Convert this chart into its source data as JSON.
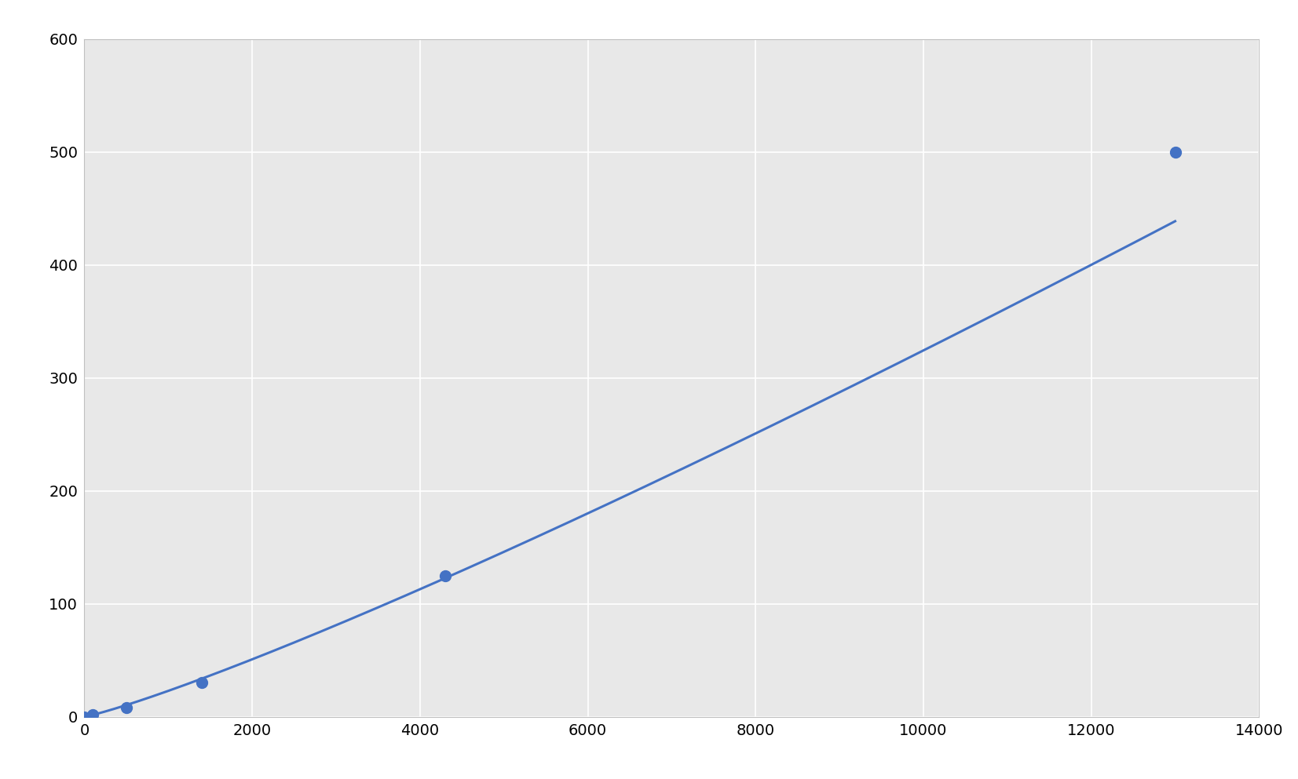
{
  "x_points": [
    0,
    100,
    500,
    1400,
    4300,
    13000
  ],
  "y_points": [
    0,
    2,
    8,
    30,
    125,
    500
  ],
  "line_color": "#4472C4",
  "marker_color": "#4472C4",
  "marker_size": 100,
  "line_width": 2.2,
  "xlim": [
    0,
    14000
  ],
  "ylim": [
    0,
    600
  ],
  "xticks": [
    0,
    2000,
    4000,
    6000,
    8000,
    10000,
    12000,
    14000
  ],
  "yticks": [
    0,
    100,
    200,
    300,
    400,
    500,
    600
  ],
  "background_color": "#ffffff",
  "plot_bg_color": "#e8e8e8",
  "grid_color": "#ffffff",
  "grid_linewidth": 1.2,
  "tick_fontsize": 14,
  "spine_color": "#c0c0c0"
}
